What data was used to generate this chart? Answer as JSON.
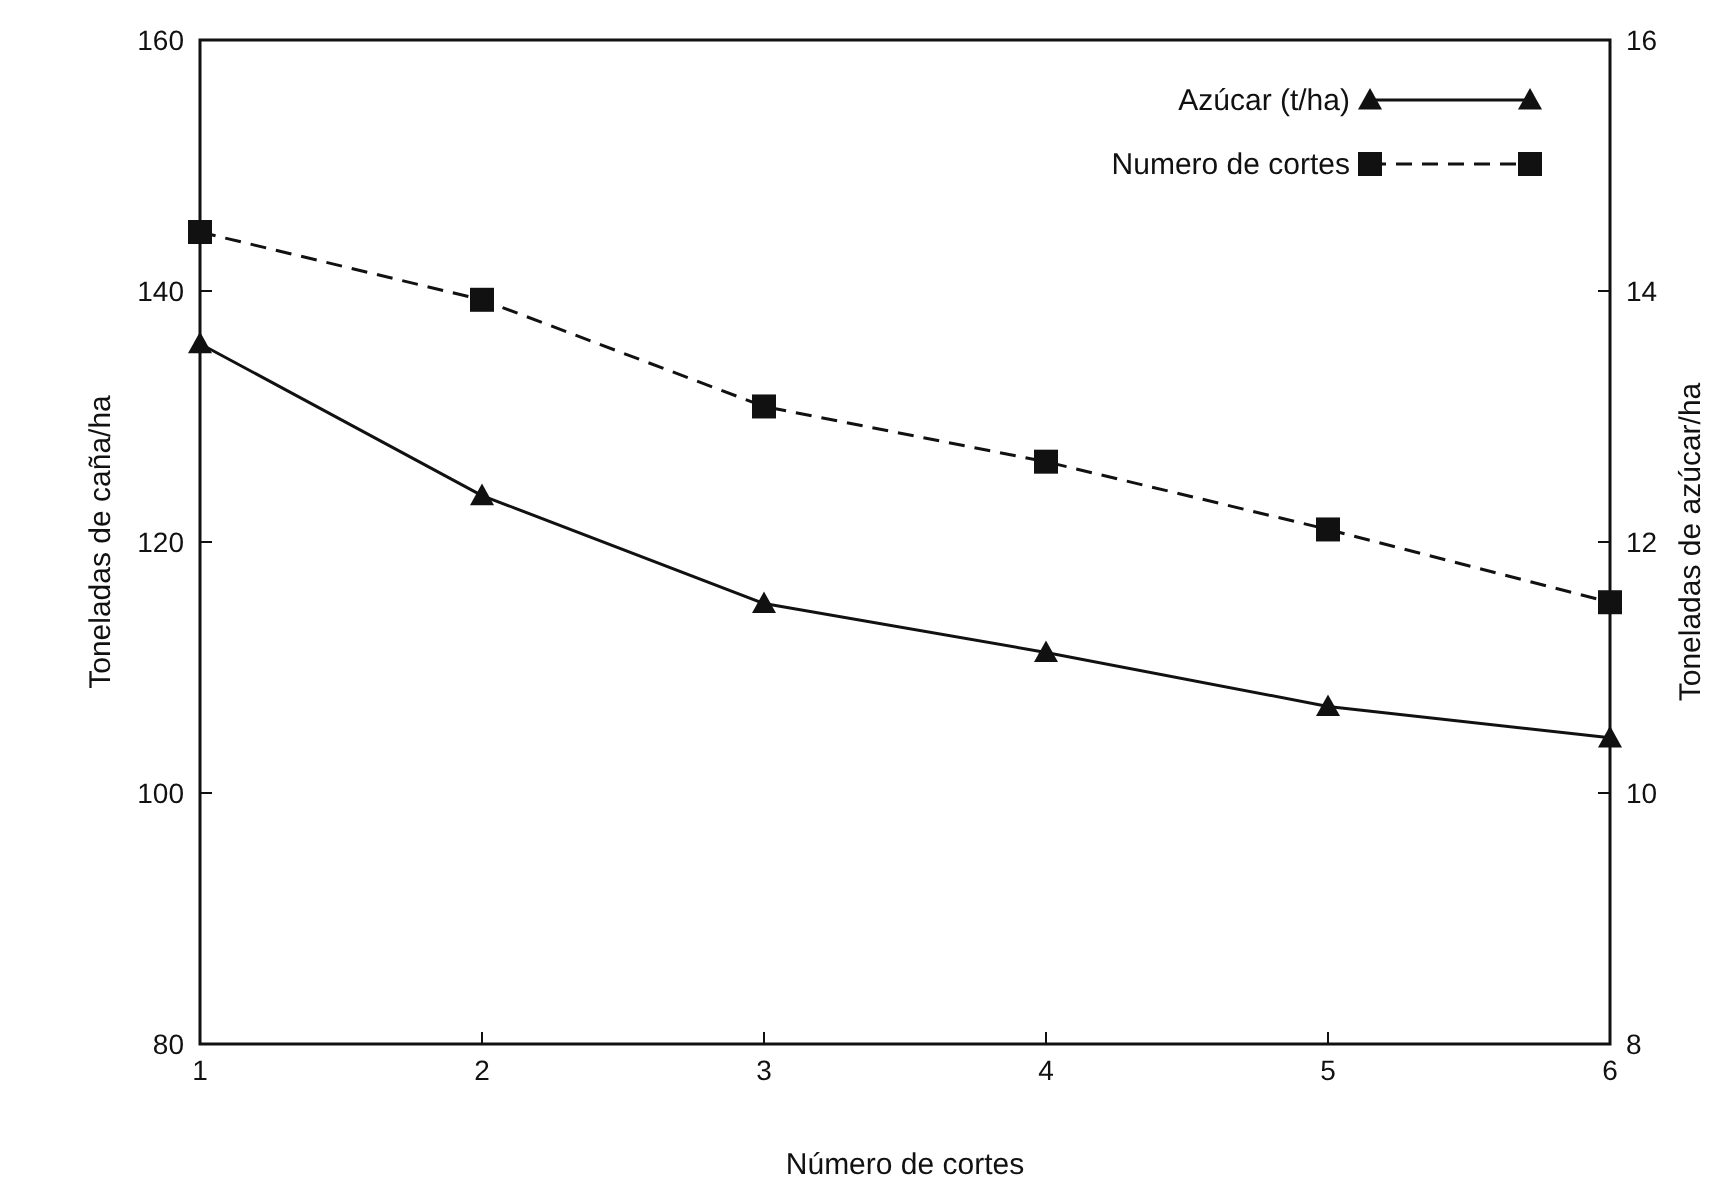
{
  "chart_data": {
    "type": "line",
    "xlabel": "Número de cortes",
    "ylabel": "Toneladas de caña/ha",
    "y2label": "Toneladas de azúcar/ha",
    "x": [
      1,
      2,
      3,
      4,
      5,
      6
    ],
    "xlim": [
      1,
      6
    ],
    "xticks": [
      1,
      2,
      3,
      4,
      5,
      6
    ],
    "ylim": [
      80,
      160
    ],
    "yticks": [
      80,
      100,
      120,
      140,
      160
    ],
    "y2lim": [
      8,
      16
    ],
    "y2ticks": [
      8,
      10,
      12,
      14,
      16
    ],
    "series": [
      {
        "name": "Azúcar (t/ha)",
        "color": "#111111",
        "axis": "y2",
        "marker": "triangle",
        "line_style": "solid",
        "values": [
          13.58,
          12.37,
          11.51,
          11.12,
          10.69,
          10.44
        ]
      },
      {
        "name": "Numero de cortes",
        "color": "#111111",
        "axis": "y",
        "marker": "square",
        "line_style": "dashed",
        "values": [
          144.7,
          139.3,
          130.8,
          126.4,
          121.0,
          115.2
        ]
      }
    ],
    "legend": "top right",
    "grid": false
  }
}
